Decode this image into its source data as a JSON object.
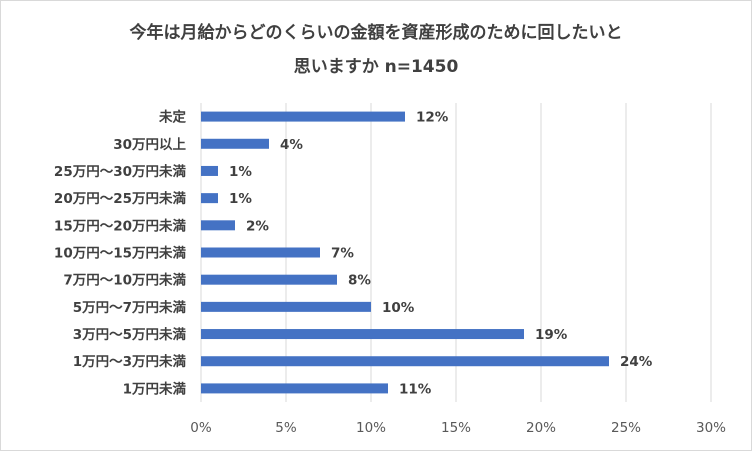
{
  "chart_data": {
    "type": "bar",
    "orientation": "horizontal",
    "title_line1": "今年は月給からどのくらいの金額を資産形成のために回したいと",
    "title_line2": "思いますか n=1450",
    "categories": [
      "未定",
      "30万円以上",
      "25万円～30万円未満",
      "20万円～25万円未満",
      "15万円～20万円未満",
      "10万円～15万円未満",
      "7万円～10万円未満",
      "5万円～7万円未満",
      "3万円～5万円未満",
      "1万円～3万円未満",
      "1万円未満"
    ],
    "values": [
      12,
      4,
      1,
      1,
      2,
      7,
      8,
      10,
      19,
      24,
      11
    ],
    "value_labels": [
      "12%",
      "4%",
      "1%",
      "1%",
      "2%",
      "7%",
      "8%",
      "10%",
      "19%",
      "24%",
      "11%"
    ],
    "x_ticks": [
      0,
      5,
      10,
      15,
      20,
      25,
      30
    ],
    "x_tick_labels": [
      "0%",
      "5%",
      "10%",
      "15%",
      "20%",
      "25%",
      "30%"
    ],
    "xlim": [
      0,
      30
    ],
    "xlabel": "",
    "ylabel": "",
    "grid": true,
    "bar_color": "#4472c4",
    "grid_color": "#d9d9d9"
  }
}
